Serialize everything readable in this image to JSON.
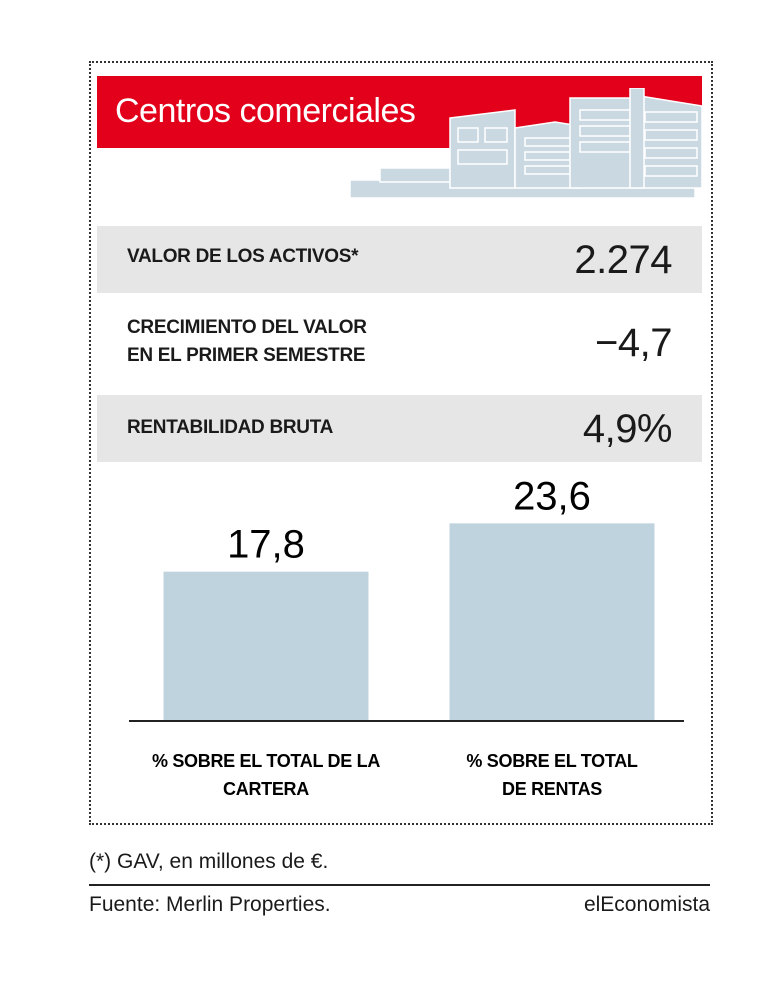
{
  "header": {
    "title": "Centros comerciales"
  },
  "rows": [
    {
      "label_lines": [
        "VALOR DE LOS ACTIVOS*"
      ],
      "value": "2.274"
    },
    {
      "label_lines": [
        "CRECIMIENTO DEL VALOR",
        "EN EL PRIMER SEMESTRE"
      ],
      "value": "−4,7"
    },
    {
      "label_lines": [
        "RENTABILIDAD BRUTA"
      ],
      "value": "4,9%"
    }
  ],
  "chart_data": {
    "type": "bar",
    "categories": [
      "% SOBRE EL TOTAL DE LA CARTERA",
      "% SOBRE EL TOTAL DE RENTAS"
    ],
    "category_lines": [
      [
        "% SOBRE EL TOTAL DE LA",
        "CARTERA"
      ],
      [
        "% SOBRE EL TOTAL",
        "DE RENTAS"
      ]
    ],
    "values": [
      17.8,
      23.6
    ],
    "value_labels": [
      "17,8",
      "23,6"
    ],
    "ylim": [
      0,
      30
    ],
    "grid": false,
    "bar_color": "#bfd3de"
  },
  "footer": {
    "note": "(*) GAV, en millones de €.",
    "source": "Fuente: Merlin Properties.",
    "brand": "elEconomista"
  },
  "colors": {
    "header_bg": "#e2001a",
    "row_shade": "#e6e6e6",
    "building": "#c9d8e1"
  }
}
